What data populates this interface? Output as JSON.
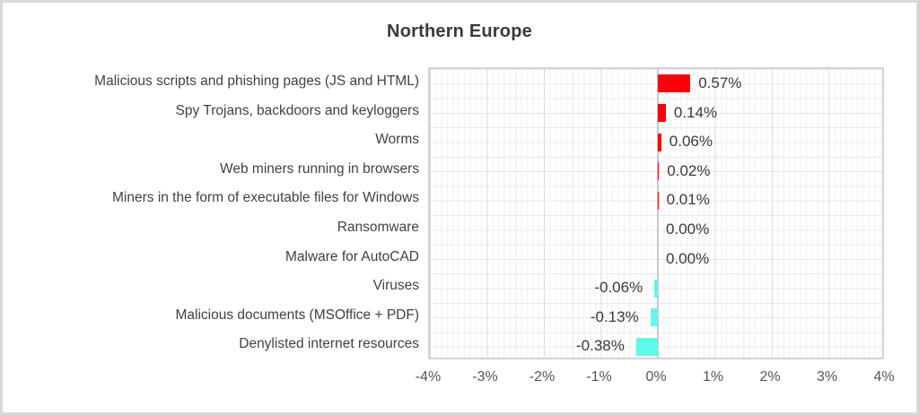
{
  "title": "Northern Europe",
  "chart_data": {
    "type": "bar",
    "orientation": "horizontal",
    "title": "Northern Europe",
    "categories": [
      "Malicious scripts and phishing pages (JS and HTML)",
      "Spy Trojans, backdoors and keyloggers",
      "Worms",
      "Web miners running in browsers",
      "Miners in the form of executable files for Windows",
      "Ransomware",
      "Malware for AutoCAD",
      "Viruses",
      "Malicious documents (MSOffice + PDF)",
      "Denylisted internet resources"
    ],
    "values": [
      0.57,
      0.14,
      0.06,
      0.02,
      0.01,
      0.0,
      0.0,
      -0.06,
      -0.13,
      -0.38
    ],
    "value_labels": [
      "0.57%",
      "0.14%",
      "0.06%",
      "0.02%",
      "0.01%",
      "0.00%",
      "0.00%",
      "-0.06%",
      "-0.13%",
      "-0.38%"
    ],
    "xlabel": "",
    "ylabel": "",
    "xlim": [
      -4,
      4
    ],
    "x_tick_labels": [
      "-4%",
      "-3%",
      "-2%",
      "-1%",
      "0%",
      "1%",
      "2%",
      "3%",
      "4%"
    ],
    "grid": "minor vertical + horizontal, light gray",
    "legend": "none",
    "positive_color": "#fb0009",
    "negative_color": "#5ff8eb",
    "axis_text_color": "#555555",
    "label_text_color": "#414141"
  }
}
